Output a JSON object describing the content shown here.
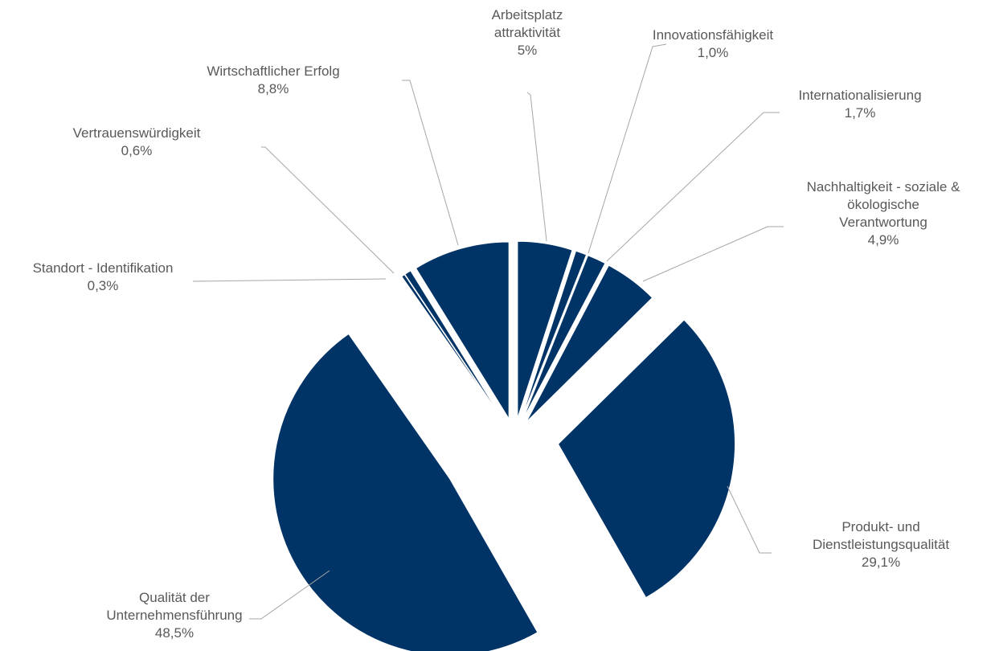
{
  "chart_data": {
    "type": "pie",
    "color": "#003366",
    "categories": [
      "Arbeitsplatz\nattraktivität",
      "Innovationsfähigkeit",
      "Internationalisierung",
      "Nachhaltigkeit - soziale &\nökologische\nVerantwortung",
      "Produkt- und\nDienstleistungsqualität",
      "Qualität der\nUnternehmensführung",
      "Standort - Identifikation",
      "Vertrauenswürdigkeit",
      "Wirtschaftlicher Erfolg"
    ],
    "values": [
      5,
      1.0,
      1.7,
      4.9,
      29.1,
      48.5,
      0.3,
      0.6,
      8.8
    ],
    "value_labels": [
      "5%",
      "1,0%",
      "1,7%",
      "4,9%",
      "29,1%",
      "48,5%",
      "0,3%",
      "0,6%",
      "8,8%"
    ]
  }
}
